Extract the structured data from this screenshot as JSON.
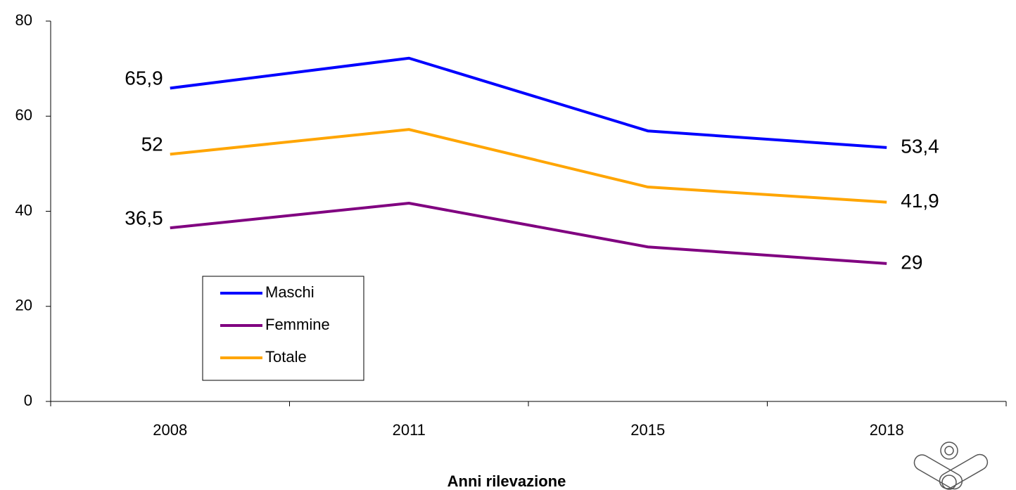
{
  "chart_data": {
    "type": "line",
    "x_label": "Anni rilevazione",
    "categories": [
      "2008",
      "2011",
      "2015",
      "2018"
    ],
    "series": [
      {
        "name": "Maschi",
        "color": "#0000ff",
        "values": [
          65.9,
          72.2,
          56.9,
          53.4
        ],
        "value_labels": [
          "65,9",
          null,
          null,
          "53,4"
        ]
      },
      {
        "name": "Femmine",
        "color": "#800080",
        "values": [
          36.5,
          41.7,
          32.5,
          29
        ],
        "value_labels": [
          "36,5",
          null,
          null,
          "29"
        ]
      },
      {
        "name": "Totale",
        "color": "#ffa500",
        "values": [
          52,
          57.2,
          45.1,
          41.9
        ],
        "value_labels": [
          "52",
          null,
          null,
          "41,9"
        ]
      }
    ],
    "ylim": [
      0,
      80
    ],
    "yticks": [
      0,
      20,
      40,
      60,
      80
    ],
    "grid": false
  }
}
